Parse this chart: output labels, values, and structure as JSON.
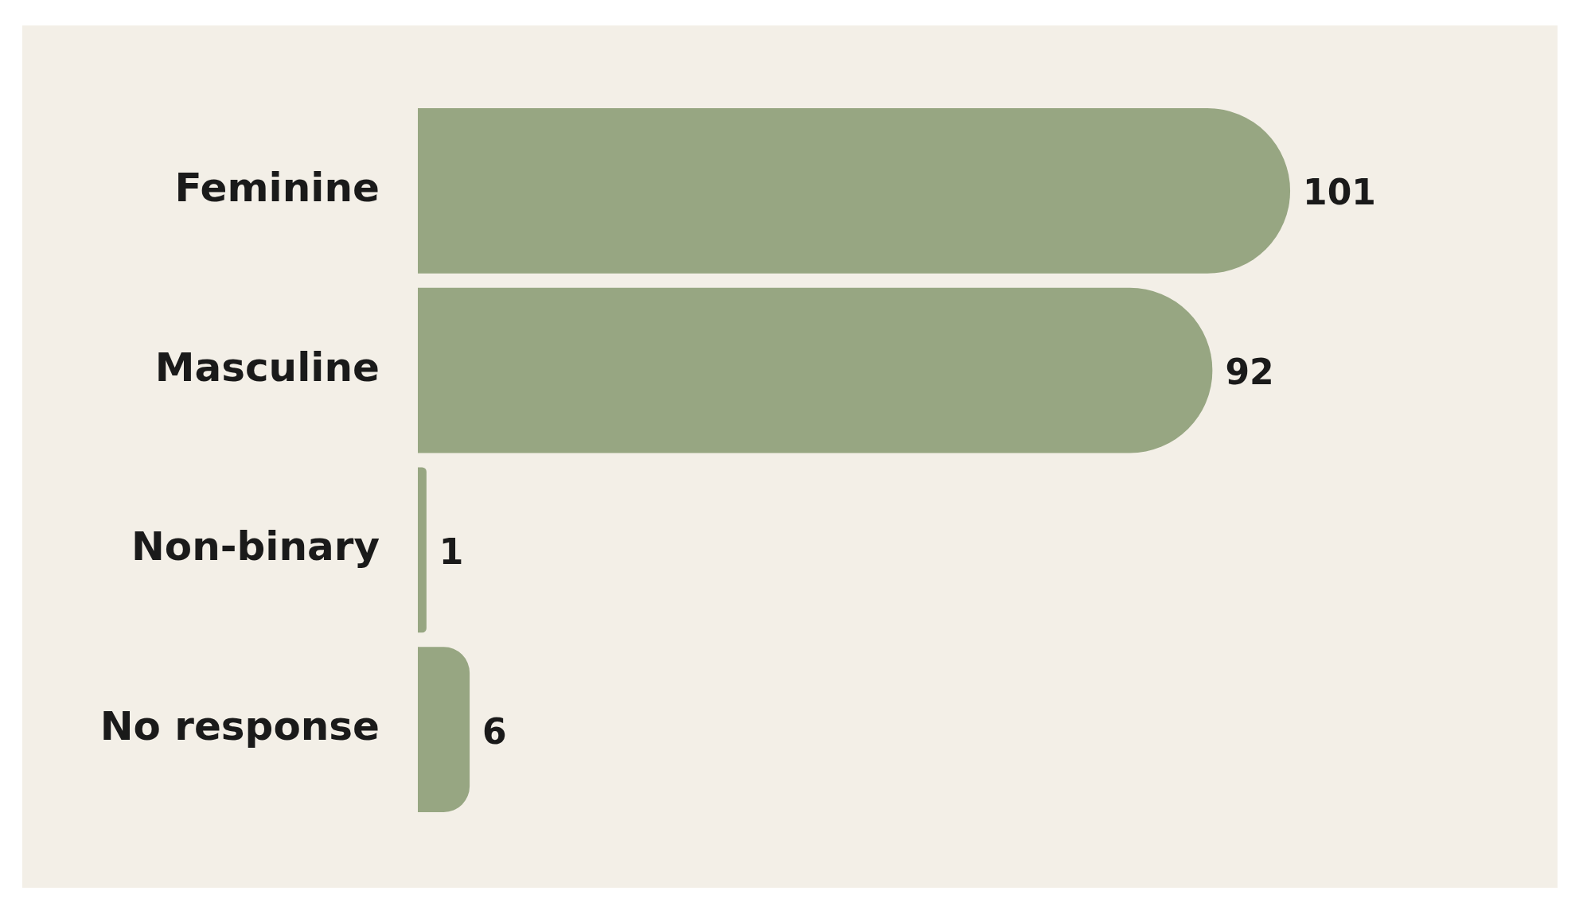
{
  "chart_data": {
    "type": "bar",
    "orientation": "horizontal",
    "categories": [
      "Feminine",
      "Masculine",
      "Non-binary",
      "No response"
    ],
    "values": [
      101,
      92,
      1,
      6
    ],
    "color": "#97a682",
    "data_labels": true,
    "legend": false,
    "tick_labels": "y"
  }
}
